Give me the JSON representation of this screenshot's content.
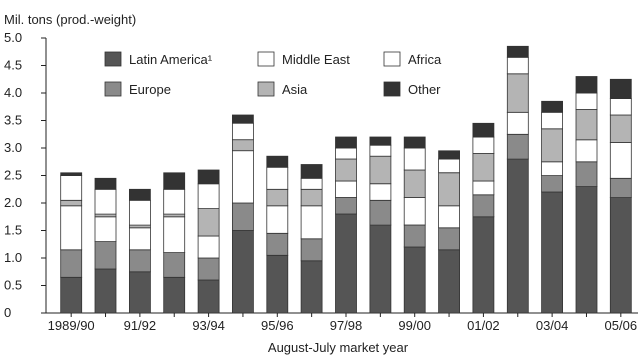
{
  "chart_data": {
    "type": "bar",
    "stacked": true,
    "title": "",
    "ylabel": "Mil. tons (prod.-weight)",
    "xlabel": "August-July market year",
    "ylim": [
      0,
      5.0
    ],
    "yticks": [
      "0",
      "0.5",
      "1.0",
      "1.5",
      "2.0",
      "2.5",
      "3.0",
      "3.5",
      "4.0",
      "4.5",
      "5.0"
    ],
    "grid": false,
    "legend_position": "top-left",
    "categories": [
      "1989/90",
      "90/91",
      "91/92",
      "92/93",
      "93/94",
      "94/95",
      "95/96",
      "96/97",
      "97/98",
      "98/99",
      "99/00",
      "00/01",
      "01/02",
      "02/03",
      "03/04",
      "04/05",
      "05/06"
    ],
    "tick_labels": [
      "1989/90",
      "",
      "91/92",
      "",
      "93/94",
      "",
      "95/96",
      "",
      "97/98",
      "",
      "99/00",
      "",
      "01/02",
      "",
      "03/04",
      "",
      "05/06"
    ],
    "series": [
      {
        "name": "Latin America¹",
        "color": "#555555",
        "values": [
          0.65,
          0.8,
          0.75,
          0.65,
          0.6,
          1.5,
          1.05,
          0.95,
          1.8,
          1.6,
          1.2,
          1.15,
          1.75,
          2.8,
          2.2,
          2.3,
          2.1
        ]
      },
      {
        "name": "Europe",
        "color": "#8a8a8a",
        "values": [
          0.5,
          0.5,
          0.4,
          0.45,
          0.4,
          0.5,
          0.4,
          0.4,
          0.3,
          0.45,
          0.4,
          0.4,
          0.4,
          0.45,
          0.3,
          0.45,
          0.35
        ]
      },
      {
        "name": "Middle East",
        "color": "#ffffff",
        "values": [
          0.8,
          0.45,
          0.4,
          0.65,
          0.4,
          0.95,
          0.5,
          0.6,
          0.3,
          0.3,
          0.5,
          0.4,
          0.25,
          0.4,
          0.25,
          0.4,
          0.65
        ]
      },
      {
        "name": "Asia",
        "color": "#b4b4b4",
        "values": [
          0.1,
          0.05,
          0.05,
          0.05,
          0.5,
          0.2,
          0.3,
          0.3,
          0.4,
          0.5,
          0.5,
          0.6,
          0.5,
          0.7,
          0.6,
          0.55,
          0.5
        ]
      },
      {
        "name": "Africa",
        "color": "#ffffff",
        "values": [
          0.45,
          0.45,
          0.45,
          0.45,
          0.45,
          0.3,
          0.4,
          0.2,
          0.2,
          0.2,
          0.4,
          0.25,
          0.3,
          0.3,
          0.3,
          0.3,
          0.3
        ]
      },
      {
        "name": "Other",
        "color": "#333333",
        "values": [
          0.05,
          0.2,
          0.2,
          0.3,
          0.25,
          0.15,
          0.2,
          0.25,
          0.2,
          0.15,
          0.2,
          0.15,
          0.25,
          0.2,
          0.2,
          0.3,
          0.35
        ]
      }
    ]
  }
}
